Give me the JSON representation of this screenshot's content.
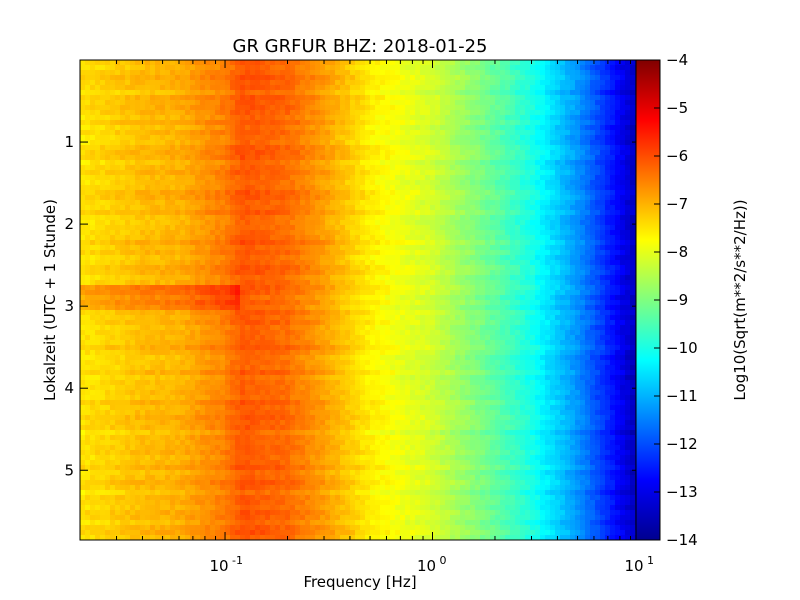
{
  "chart_data": {
    "type": "heatmap",
    "title": "GR GRFUR BHZ: 2018-01-25",
    "xlabel": "Frequency [Hz]",
    "ylabel": "Lokalzeit (UTC + 1 Stunde)",
    "colorbar_label": "Log10(Sqrt(m**2/s**2/Hz))",
    "x_scale": "log",
    "xlim": [
      0.02,
      10
    ],
    "ylim": [
      0,
      5.85
    ],
    "y_inverted": true,
    "clim": [
      -14,
      -4
    ],
    "colormap": "jet",
    "x_ticks": [
      {
        "value": 0.1,
        "base": "10",
        "exp": "-1"
      },
      {
        "value": 1,
        "base": "10",
        "exp": "0"
      },
      {
        "value": 10,
        "base": "10",
        "exp": "1"
      }
    ],
    "y_ticks": [
      {
        "value": 1,
        "label": "1"
      },
      {
        "value": 2,
        "label": "2"
      },
      {
        "value": 3,
        "label": "3"
      },
      {
        "value": 4,
        "label": "4"
      },
      {
        "value": 5,
        "label": "5"
      }
    ],
    "colorbar_ticks": [
      {
        "value": -4,
        "label": "−4"
      },
      {
        "value": -5,
        "label": "−5"
      },
      {
        "value": -6,
        "label": "−6"
      },
      {
        "value": -7,
        "label": "−7"
      },
      {
        "value": -8,
        "label": "−8"
      },
      {
        "value": -9,
        "label": "−9"
      },
      {
        "value": -10,
        "label": "−10"
      },
      {
        "value": -11,
        "label": "−11"
      },
      {
        "value": -12,
        "label": "−12"
      },
      {
        "value": -13,
        "label": "−13"
      },
      {
        "value": -14,
        "label": "−14"
      }
    ],
    "spectrum_profile": {
      "frequency_hz": [
        0.02,
        0.04,
        0.06,
        0.08,
        0.1,
        0.12,
        0.2,
        0.3,
        0.5,
        0.7,
        1.0,
        2.0,
        3.0,
        5.0,
        7.0,
        10.0
      ],
      "log10_amplitude": [
        -7.5,
        -7.1,
        -7.0,
        -6.7,
        -6.5,
        -6.1,
        -6.3,
        -6.8,
        -7.6,
        -7.9,
        -8.2,
        -9.3,
        -10.0,
        -11.3,
        -12.4,
        -13.6
      ]
    }
  }
}
